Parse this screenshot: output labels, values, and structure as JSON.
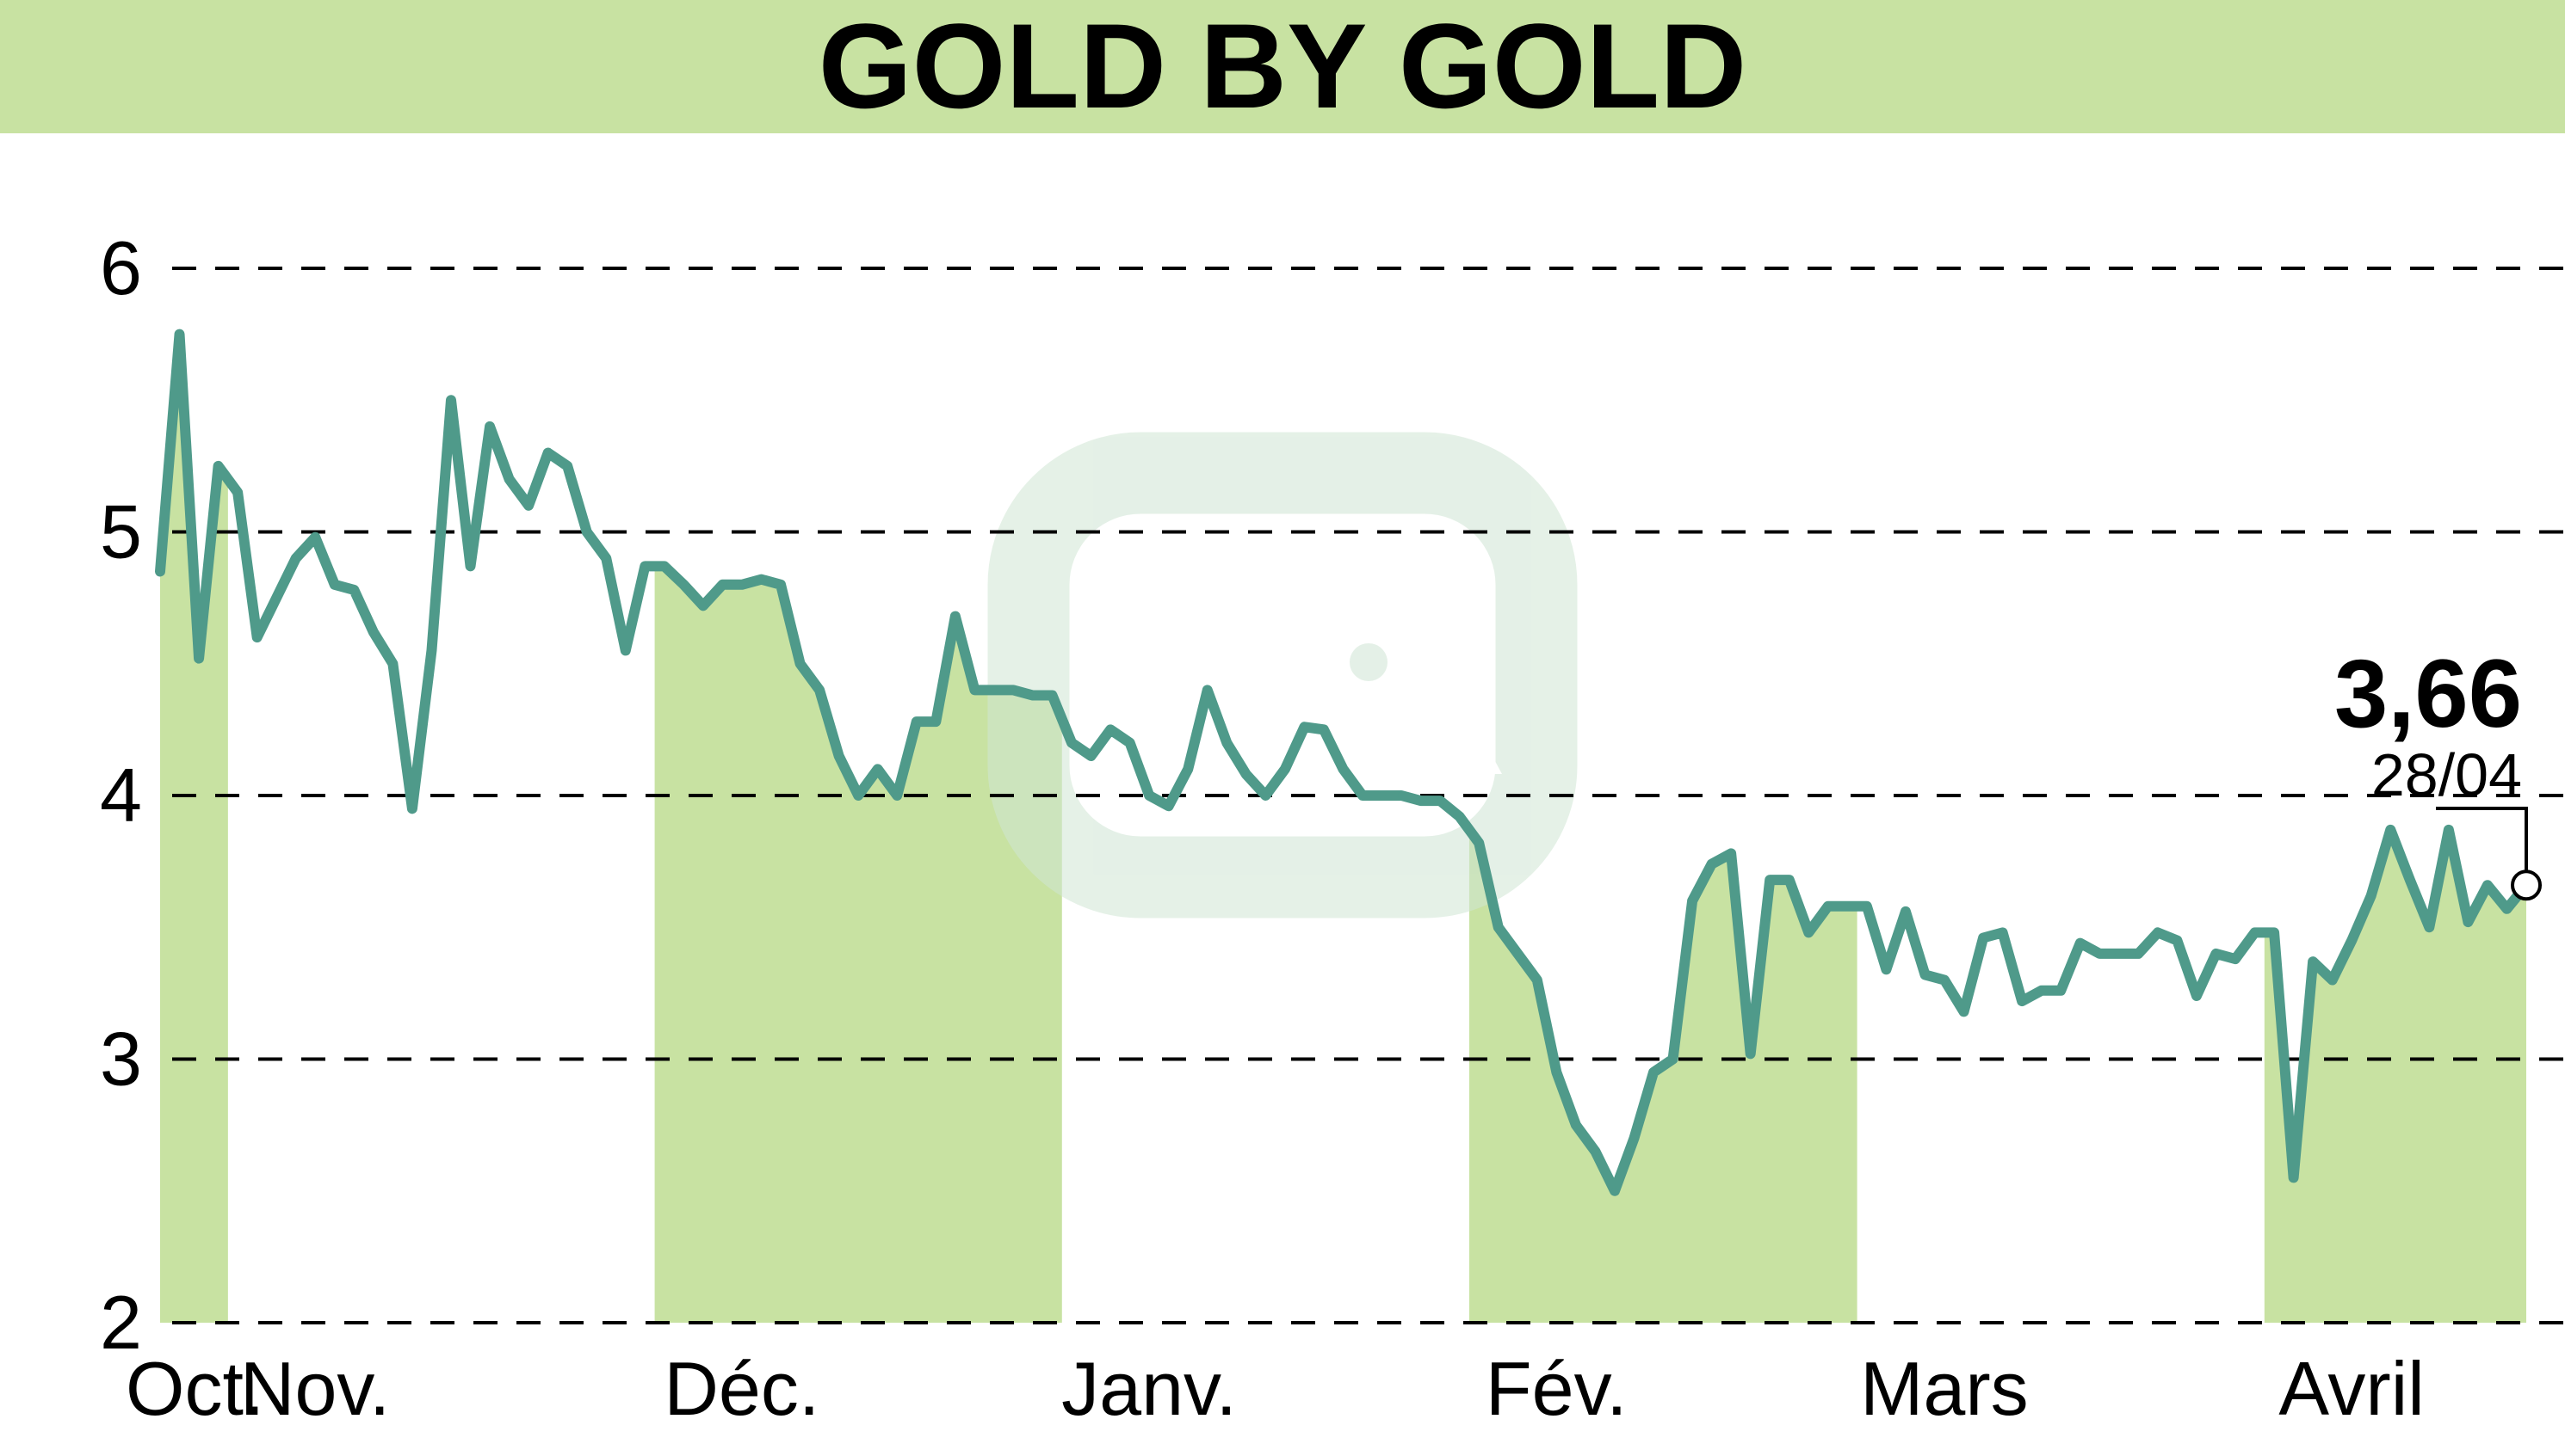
{
  "colors": {
    "banner": "#c8e2a2",
    "band": "#c8e2a2",
    "line": "#4f9a8a",
    "grid": "#000000",
    "watermark": "#cfe5d4"
  },
  "chart_data": {
    "type": "line",
    "title": "GOLD BY GOLD",
    "xlabel": "",
    "ylabel": "",
    "ylim": [
      2,
      6
    ],
    "yticks": [
      "2",
      "3",
      "4",
      "5",
      "6"
    ],
    "grid": "horizontal dashed",
    "months": [
      {
        "label": "Oct.",
        "start_index": 0,
        "end_index": 3,
        "shaded": true
      },
      {
        "label": "Nov.",
        "start_index": 4,
        "end_index": 25,
        "shaded": false
      },
      {
        "label": "Déc.",
        "start_index": 26,
        "end_index": 46,
        "shaded": true
      },
      {
        "label": "Janv.",
        "start_index": 47,
        "end_index": 67,
        "shaded": false
      },
      {
        "label": "Fév.",
        "start_index": 68,
        "end_index": 87,
        "shaded": true
      },
      {
        "label": "Mars",
        "start_index": 88,
        "end_index": 108,
        "shaded": false
      },
      {
        "label": "Avril",
        "start_index": 109,
        "end_index": 124,
        "shaded": true
      }
    ],
    "series": [
      {
        "values": [
          4.85,
          5.75,
          4.52,
          5.25,
          5.15,
          4.6,
          4.75,
          4.9,
          4.98,
          4.8,
          4.78,
          4.62,
          4.5,
          3.95,
          4.55,
          5.5,
          4.87,
          5.4,
          5.2,
          5.1,
          5.3,
          5.25,
          5.0,
          4.9,
          4.55,
          4.87,
          4.87,
          4.8,
          4.72,
          4.8,
          4.8,
          4.82,
          4.8,
          4.5,
          4.4,
          4.15,
          4.0,
          4.1,
          4.0,
          4.28,
          4.28,
          4.68,
          4.4,
          4.4,
          4.4,
          4.38,
          4.38,
          4.2,
          4.15,
          4.25,
          4.2,
          4.0,
          3.96,
          4.1,
          4.4,
          4.2,
          4.08,
          4.0,
          4.1,
          4.26,
          4.25,
          4.1,
          4.0,
          4.0,
          4.0,
          3.98,
          3.98,
          3.92,
          3.82,
          3.5,
          3.4,
          3.3,
          2.95,
          2.75,
          2.65,
          2.5,
          2.7,
          2.95,
          3.0,
          3.6,
          3.74,
          3.78,
          3.02,
          3.68,
          3.68,
          3.48,
          3.58,
          3.58,
          3.58,
          3.34,
          3.56,
          3.32,
          3.3,
          3.18,
          3.46,
          3.48,
          3.22,
          3.26,
          3.26,
          3.44,
          3.4,
          3.4,
          3.4,
          3.48,
          3.45,
          3.24,
          3.4,
          3.38,
          3.48,
          3.48,
          2.55,
          3.37,
          3.3,
          3.45,
          3.62,
          3.87,
          3.68,
          3.5,
          3.87,
          3.52,
          3.66,
          3.57,
          3.66
        ]
      }
    ],
    "last_value": "3,66",
    "last_date": "28/04"
  }
}
